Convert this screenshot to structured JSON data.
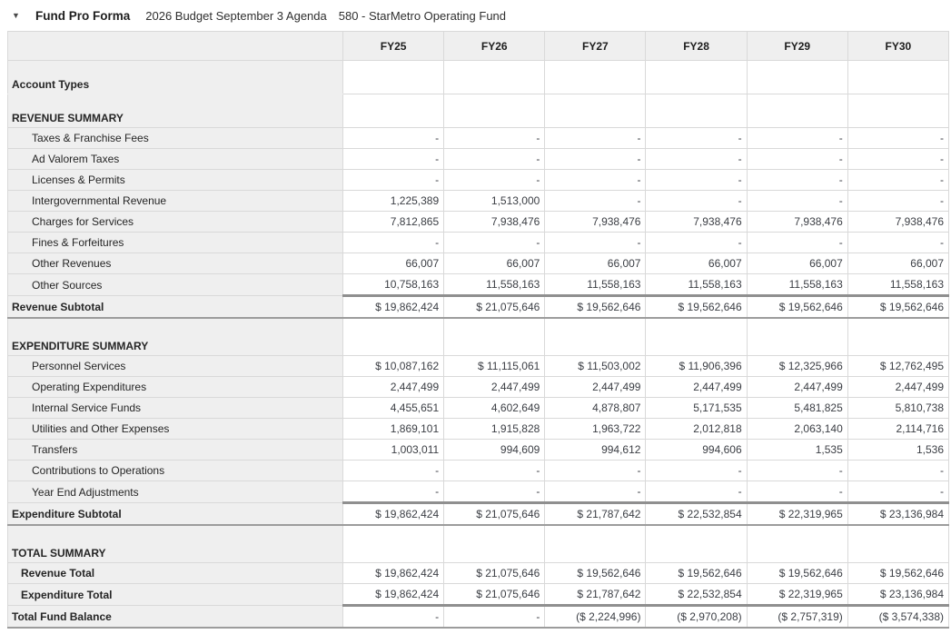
{
  "header": {
    "collapse_icon_glyph": "▼",
    "title": "Fund Pro Forma",
    "budget_label": "2026 Budget September 3 Agenda",
    "fund_label": "580 - StarMetro Operating Fund"
  },
  "colors": {
    "label_column_bg": "#efefef",
    "header_row_bg": "#efefef",
    "grid_border": "#d9d9d9",
    "heavy_border": "#8f8f8f",
    "text": "#3b3e44"
  },
  "table": {
    "columns": [
      "FY25",
      "FY26",
      "FY27",
      "FY28",
      "FY29",
      "FY30"
    ],
    "rows": [
      {
        "type": "section-first",
        "label": "Account Types",
        "values": [
          "",
          "",
          "",
          "",
          "",
          ""
        ]
      },
      {
        "type": "section",
        "label": "REVENUE SUMMARY",
        "values": [
          "",
          "",
          "",
          "",
          "",
          ""
        ]
      },
      {
        "type": "detail",
        "label": "Taxes & Franchise Fees",
        "values": [
          "-",
          "-",
          "-",
          "-",
          "-",
          "-"
        ]
      },
      {
        "type": "detail",
        "label": "Ad Valorem Taxes",
        "values": [
          "-",
          "-",
          "-",
          "-",
          "-",
          "-"
        ]
      },
      {
        "type": "detail",
        "label": "Licenses & Permits",
        "values": [
          "-",
          "-",
          "-",
          "-",
          "-",
          "-"
        ]
      },
      {
        "type": "detail",
        "label": "Intergovernmental Revenue",
        "values": [
          "1,225,389",
          "1,513,000",
          "-",
          "-",
          "-",
          "-"
        ]
      },
      {
        "type": "detail",
        "label": "Charges for Services",
        "values": [
          "7,812,865",
          "7,938,476",
          "7,938,476",
          "7,938,476",
          "7,938,476",
          "7,938,476"
        ]
      },
      {
        "type": "detail",
        "label": "Fines & Forfeitures",
        "values": [
          "-",
          "-",
          "-",
          "-",
          "-",
          "-"
        ]
      },
      {
        "type": "detail",
        "label": "Other Revenues",
        "values": [
          "66,007",
          "66,007",
          "66,007",
          "66,007",
          "66,007",
          "66,007"
        ]
      },
      {
        "type": "detail",
        "label": "Other Sources",
        "values": [
          "10,758,163",
          "11,558,163",
          "11,558,163",
          "11,558,163",
          "11,558,163",
          "11,558,163"
        ]
      },
      {
        "type": "subtotal",
        "label": "Revenue Subtotal",
        "values": [
          "$ 19,862,424",
          "$ 21,075,646",
          "$ 19,562,646",
          "$ 19,562,646",
          "$ 19,562,646",
          "$ 19,562,646"
        ]
      },
      {
        "type": "gap-section",
        "label": "EXPENDITURE SUMMARY",
        "values": [
          "",
          "",
          "",
          "",
          "",
          ""
        ]
      },
      {
        "type": "detail",
        "label": "Personnel Services",
        "values": [
          "$ 10,087,162",
          "$ 11,115,061",
          "$ 11,503,002",
          "$ 11,906,396",
          "$ 12,325,966",
          "$ 12,762,495"
        ]
      },
      {
        "type": "detail",
        "label": "Operating Expenditures",
        "values": [
          "2,447,499",
          "2,447,499",
          "2,447,499",
          "2,447,499",
          "2,447,499",
          "2,447,499"
        ]
      },
      {
        "type": "detail",
        "label": "Internal Service Funds",
        "values": [
          "4,455,651",
          "4,602,649",
          "4,878,807",
          "5,171,535",
          "5,481,825",
          "5,810,738"
        ]
      },
      {
        "type": "detail",
        "label": "Utilities and Other Expenses",
        "values": [
          "1,869,101",
          "1,915,828",
          "1,963,722",
          "2,012,818",
          "2,063,140",
          "2,114,716"
        ]
      },
      {
        "type": "detail",
        "label": "Transfers",
        "values": [
          "1,003,011",
          "994,609",
          "994,612",
          "994,606",
          "1,535",
          "1,536"
        ]
      },
      {
        "type": "detail",
        "label": "Contributions to Operations",
        "values": [
          "-",
          "-",
          "-",
          "-",
          "-",
          "-"
        ]
      },
      {
        "type": "detail",
        "label": "Year End Adjustments",
        "values": [
          "-",
          "-",
          "-",
          "-",
          "-",
          "-"
        ]
      },
      {
        "type": "subtotal",
        "label": "Expenditure Subtotal",
        "values": [
          "$ 19,862,424",
          "$ 21,075,646",
          "$ 21,787,642",
          "$ 22,532,854",
          "$ 22,319,965",
          "$ 23,136,984"
        ]
      },
      {
        "type": "gap-section",
        "label": "TOTAL SUMMARY",
        "values": [
          "",
          "",
          "",
          "",
          "",
          ""
        ]
      },
      {
        "type": "total",
        "label": "Revenue Total",
        "values": [
          "$ 19,862,424",
          "$ 21,075,646",
          "$ 19,562,646",
          "$ 19,562,646",
          "$ 19,562,646",
          "$ 19,562,646"
        ]
      },
      {
        "type": "total",
        "label": "Expenditure Total",
        "values": [
          "$ 19,862,424",
          "$ 21,075,646",
          "$ 21,787,642",
          "$ 22,532,854",
          "$ 22,319,965",
          "$ 23,136,984"
        ]
      },
      {
        "type": "grand",
        "label": "Total Fund Balance",
        "values": [
          "-",
          "-",
          "($ 2,224,996)",
          "($ 2,970,208)",
          "($ 2,757,319)",
          "($ 3,574,338)"
        ]
      }
    ]
  }
}
